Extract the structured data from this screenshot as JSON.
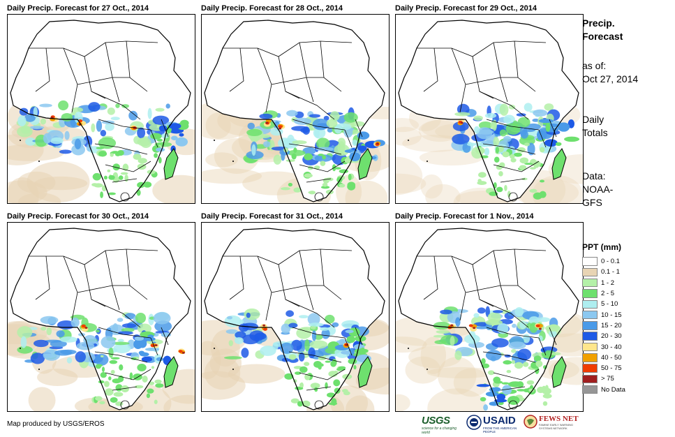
{
  "panels": [
    {
      "title": "Daily Precip. Forecast for 27 Oct., 2014"
    },
    {
      "title": "Daily Precip. Forecast for 28 Oct., 2014"
    },
    {
      "title": "Daily Precip. Forecast for 29 Oct., 2014"
    },
    {
      "title": "Daily Precip. Forecast for 30 Oct., 2014"
    },
    {
      "title": "Daily Precip. Forecast for 31 Oct., 2014"
    },
    {
      "title": "Daily Precip. Forecast for 1 Nov., 2014"
    }
  ],
  "sidebar": {
    "title_line1": "Precip.",
    "title_line2": "Forecast",
    "asof_label": "as of:",
    "asof_date": "Oct 27, 2014",
    "totals_line1": "Daily",
    "totals_line2": "Totals",
    "data_line1": "Data:",
    "data_line2": "NOAA-",
    "data_line3": "GFS"
  },
  "legend": {
    "title": "PPT (mm)",
    "items": [
      {
        "label": "0 - 0.1",
        "color": "#ffffff"
      },
      {
        "label": "0.1 - 1",
        "color": "#e8d4b4"
      },
      {
        "label": "1 - 2",
        "color": "#b4f0a8"
      },
      {
        "label": "2 - 5",
        "color": "#6ee06e"
      },
      {
        "label": "5 - 10",
        "color": "#aeeef0"
      },
      {
        "label": "10 - 15",
        "color": "#8cc8f0"
      },
      {
        "label": "15 - 20",
        "color": "#4a9ae8"
      },
      {
        "label": "20 - 30",
        "color": "#1e5ae6"
      },
      {
        "label": "30 - 40",
        "color": "#ffe68c"
      },
      {
        "label": "40 - 50",
        "color": "#f0a000"
      },
      {
        "label": "50 - 75",
        "color": "#f03c00"
      },
      {
        "label": "> 75",
        "color": "#a01e1e"
      },
      {
        "label": "No Data",
        "color": "#969696"
      }
    ]
  },
  "footer": {
    "credit": "Map produced by USGS/EROS",
    "usgs_logo": "USGS",
    "usgs_tagline": "science for a changing world",
    "usaid_logo": "USAID",
    "usaid_tagline": "FROM THE AMERICAN PEOPLE",
    "fews_logo": "FEWS NET",
    "fews_tagline": "FAMINE EARLY WARNING SYSTEMS NETWORK"
  }
}
